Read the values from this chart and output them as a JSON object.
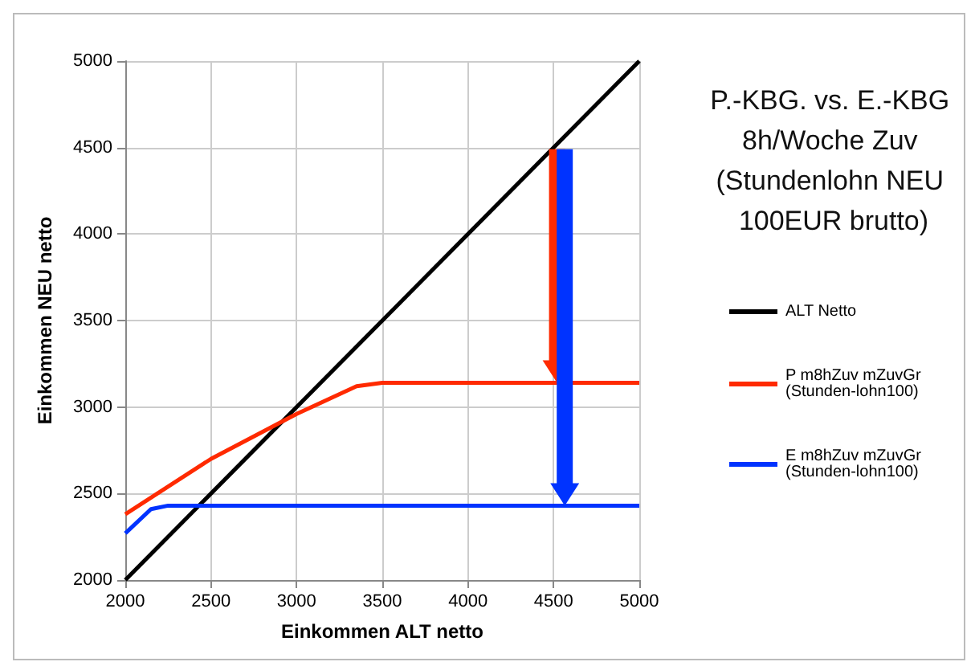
{
  "chart_data": {
    "type": "line",
    "title": "P.-KBG. vs. E.-KBG 8h/Woche Zuv (Stundenlohn NEU 100EUR brutto)",
    "xlabel": "Einkommen ALT netto",
    "ylabel": "Einkommen NEU netto",
    "series": [
      {
        "name": "ALT Netto",
        "color": "#000000",
        "x": [
          2000,
          5000
        ],
        "values": [
          2000,
          5000
        ]
      },
      {
        "name": "P m8hZuv mZuvGr (Stunden-lohn100)",
        "color": "#ff2a00",
        "x": [
          2000,
          2500,
          3000,
          3350,
          3500,
          5000
        ],
        "values": [
          2380,
          2700,
          2960,
          3120,
          3140,
          3140
        ]
      },
      {
        "name": "E m8hZuv mZuvGr (Stunden-lohn100)",
        "color": "#0033ff",
        "x": [
          2000,
          2150,
          2250,
          5000
        ],
        "values": [
          2270,
          2410,
          2430,
          2430
        ]
      }
    ],
    "xlim": [
      2000,
      5000
    ],
    "xticks": [
      2000,
      2500,
      3000,
      3500,
      4000,
      4500,
      5000
    ],
    "ylim": [
      2000,
      5000
    ],
    "yticks": [
      2000,
      2500,
      3000,
      3500,
      4000,
      4500,
      5000
    ],
    "grid": true,
    "legend": "right",
    "marker": "none",
    "line_style": "solid"
  }
}
